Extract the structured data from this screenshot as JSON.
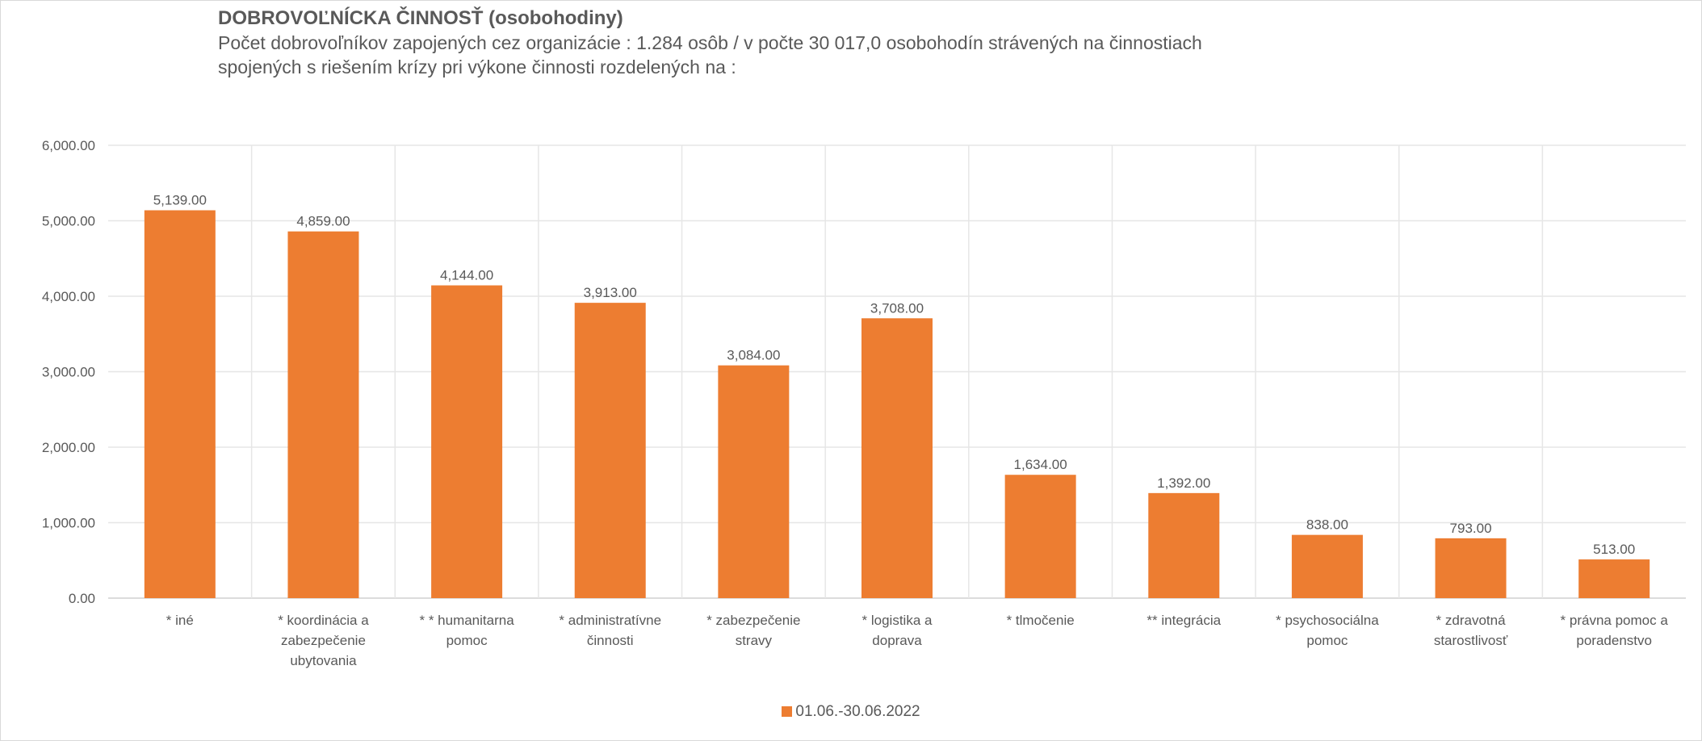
{
  "chart_data": {
    "type": "bar",
    "title": "DOBROVOĽNÍCKA ČINNOSŤ (osobohodiny)",
    "subtitle": "Počet dobrovoľníkov zapojených cez organizácie : 1.284 osôb  /  v počte  30 017,0 osobohodín strávených na činnostiach\nspojených s riešením krízy  pri výkone činnosti rozdelených na :",
    "categories": [
      "* iné",
      "* koordinácia  a zabezpečenie ubytovania",
      "* * humanitarna pomoc",
      "* administratívne činnosti",
      "* zabezpečenie stravy",
      "* logistika a doprava",
      "* tlmočenie",
      "**  integrácia",
      "* psychosociálna pomoc",
      "* zdravotná starostlivosť",
      "* právna pomoc a poradenstvo"
    ],
    "series": [
      {
        "name": "01.06.-30.06.2022",
        "values": [
          5139,
          4859,
          4144,
          3913,
          3084,
          3708,
          1634,
          1392,
          838,
          793,
          513
        ],
        "data_labels": [
          "5,139.00",
          "4,859.00",
          "4,144.00",
          "3,913.00",
          "3,084.00",
          "3,708.00",
          "1,634.00",
          "1,392.00",
          "838.00",
          "793.00",
          "513.00"
        ]
      }
    ],
    "ylim": [
      0,
      6000
    ],
    "yticks": [
      "0.00",
      "1,000.00",
      "2,000.00",
      "3,000.00",
      "4,000.00",
      "5,000.00",
      "6,000.00"
    ],
    "xlabel": "",
    "ylabel": "",
    "grid": true,
    "legend_position": "bottom",
    "colors": {
      "bar": "#ed7d31",
      "grid": "#e6e6e6",
      "text": "#595959"
    }
  }
}
